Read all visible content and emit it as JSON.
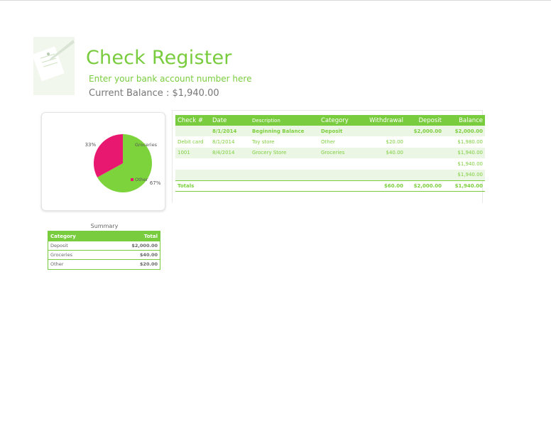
{
  "header": {
    "title": "Check Register",
    "account_placeholder": "Enter your bank account number here",
    "balance_label": "Current Balance :",
    "balance_value": "$1,940.00"
  },
  "register": {
    "columns": [
      "Check #",
      "Date",
      "Description",
      "Category",
      "Withdrawal",
      "Deposit",
      "Balance"
    ],
    "rows": [
      {
        "check": "",
        "date": "8/1/2014",
        "description": "Beginning Balance",
        "category": "Deposit",
        "withdrawal": "",
        "deposit": "$2,000.00",
        "balance": "$2,000.00"
      },
      {
        "check": "Debit card",
        "date": "8/1/2014",
        "description": "Toy store",
        "category": "Other",
        "withdrawal": "$20.00",
        "deposit": "",
        "balance": "$1,980.00"
      },
      {
        "check": "1001",
        "date": "8/4/2014",
        "description": "Grocery Store",
        "category": "Groceries",
        "withdrawal": "$40.00",
        "deposit": "",
        "balance": "$1,940.00"
      },
      {
        "check": "",
        "date": "",
        "description": "",
        "category": "",
        "withdrawal": "",
        "deposit": "",
        "balance": "$1,940.00"
      },
      {
        "check": "",
        "date": "",
        "description": "",
        "category": "",
        "withdrawal": "",
        "deposit": "",
        "balance": "$1,940.00"
      }
    ],
    "totals": {
      "label": "Totals",
      "withdrawal": "$60.00",
      "deposit": "$2,000.00",
      "balance": "$1,940.00"
    }
  },
  "summary": {
    "title": "Summary",
    "columns": [
      "Category",
      "Total"
    ],
    "rows": [
      {
        "category": "Deposit",
        "total": "$2,000.00"
      },
      {
        "category": "Groceries",
        "total": "$40.00"
      },
      {
        "category": "Other",
        "total": "$20.00"
      }
    ]
  },
  "chart_data": {
    "type": "pie",
    "categories": [
      "Groceries",
      "Other"
    ],
    "values": [
      67,
      33
    ],
    "labels": [
      "67%",
      "33%"
    ],
    "colors": [
      "#7dd33b",
      "#e8176f"
    ],
    "legend": "right"
  }
}
